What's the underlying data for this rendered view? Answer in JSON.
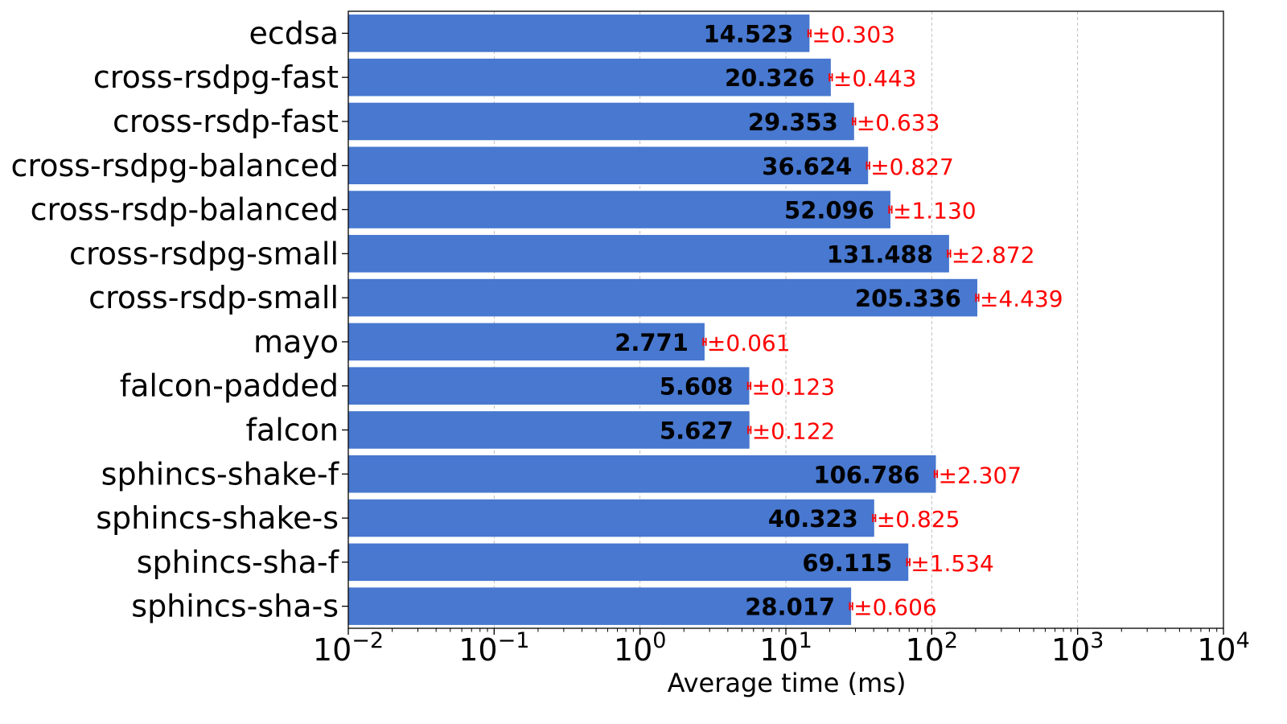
{
  "chart_data": {
    "type": "bar",
    "orientation": "horizontal",
    "xscale": "log",
    "xlim": [
      0.01,
      10000
    ],
    "xlabel": "Average time (ms)",
    "ylabel": "",
    "title": "",
    "grid": "x-major-dashed",
    "categories": [
      "ecdsa",
      "cross-rsdpg-fast",
      "cross-rsdp-fast",
      "cross-rsdpg-balanced",
      "cross-rsdp-balanced",
      "cross-rsdpg-small",
      "cross-rsdp-small",
      "mayo",
      "falcon-padded",
      "falcon",
      "sphincs-shake-f",
      "sphincs-shake-s",
      "sphincs-sha-f",
      "sphincs-sha-s"
    ],
    "values": [
      14.523,
      20.326,
      29.353,
      36.624,
      52.096,
      131.488,
      205.336,
      2.771,
      5.608,
      5.627,
      106.786,
      40.323,
      69.115,
      28.017
    ],
    "errors": [
      0.303,
      0.443,
      0.633,
      0.827,
      1.13,
      2.872,
      4.439,
      0.061,
      0.123,
      0.122,
      2.307,
      0.825,
      1.534,
      0.606
    ],
    "value_labels": [
      "14.523",
      "20.326",
      "29.353",
      "36.624",
      "52.096",
      "131.488",
      "205.336",
      "2.771",
      "5.608",
      "5.627",
      "106.786",
      "40.323",
      "69.115",
      "28.017"
    ],
    "error_labels": [
      "±0.303",
      "±0.443",
      "±0.633",
      "±0.827",
      "±1.130",
      "±2.872",
      "±4.439",
      "±0.061",
      "±0.123",
      "±0.122",
      "±2.307",
      "±0.825",
      "±1.534",
      "±0.606"
    ],
    "x_ticks": [
      {
        "value": 0.01,
        "base": "10",
        "exp": "−2"
      },
      {
        "value": 0.1,
        "base": "10",
        "exp": "−1"
      },
      {
        "value": 1,
        "base": "10",
        "exp": "0"
      },
      {
        "value": 10,
        "base": "10",
        "exp": "1"
      },
      {
        "value": 100,
        "base": "10",
        "exp": "2"
      },
      {
        "value": 1000,
        "base": "10",
        "exp": "3"
      },
      {
        "value": 10000,
        "base": "10",
        "exp": "4"
      }
    ],
    "colors": {
      "bar": "#4878cf",
      "error": "#ff0000",
      "grid": "#b0b0b0"
    }
  }
}
